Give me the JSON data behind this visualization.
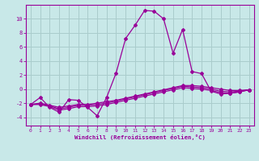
{
  "xlabel": "Windchill (Refroidissement éolien,°C)",
  "background_color": "#c8e8e8",
  "grid_color": "#aacccc",
  "line_color": "#990099",
  "x_ticks": [
    0,
    1,
    2,
    3,
    4,
    5,
    6,
    7,
    8,
    9,
    10,
    11,
    12,
    13,
    14,
    15,
    16,
    17,
    18,
    19,
    20,
    21,
    22,
    23
  ],
  "y_ticks": [
    -4,
    -2,
    0,
    2,
    4,
    6,
    8,
    10
  ],
  "xlim": [
    -0.5,
    23.5
  ],
  "ylim": [
    -5.2,
    12.0
  ],
  "series_x": [
    0,
    1,
    2,
    3,
    4,
    5,
    6,
    7,
    8,
    9,
    10,
    11,
    12,
    13,
    14,
    15,
    16,
    17,
    18,
    19,
    20,
    21,
    22,
    23
  ],
  "series": [
    [
      -2.2,
      -1.2,
      -2.6,
      -3.3,
      -1.5,
      -1.6,
      -2.6,
      -3.8,
      -1.2,
      2.3,
      7.2,
      9.1,
      11.2,
      11.1,
      10.0,
      5.1,
      8.5,
      2.5,
      2.2,
      -0.3,
      -0.7,
      -0.6,
      -0.4,
      -0.1
    ],
    [
      -2.2,
      -2.0,
      -2.3,
      -2.6,
      -2.4,
      -2.2,
      -2.2,
      -2.0,
      -1.8,
      -1.6,
      -1.3,
      -1.0,
      -0.7,
      -0.4,
      -0.1,
      0.2,
      0.5,
      0.5,
      0.4,
      0.2,
      0.0,
      -0.2,
      -0.2,
      -0.1
    ],
    [
      -2.2,
      -2.1,
      -2.4,
      -2.8,
      -2.6,
      -2.3,
      -2.3,
      -2.2,
      -2.0,
      -1.7,
      -1.4,
      -1.1,
      -0.8,
      -0.5,
      -0.2,
      0.1,
      0.4,
      0.3,
      0.2,
      0.0,
      -0.3,
      -0.4,
      -0.3,
      -0.1
    ],
    [
      -2.2,
      -2.2,
      -2.5,
      -3.0,
      -2.8,
      -2.5,
      -2.5,
      -2.4,
      -2.2,
      -1.9,
      -1.6,
      -1.3,
      -1.0,
      -0.7,
      -0.4,
      -0.1,
      0.2,
      0.1,
      0.0,
      -0.2,
      -0.5,
      -0.6,
      -0.4,
      -0.1
    ]
  ]
}
